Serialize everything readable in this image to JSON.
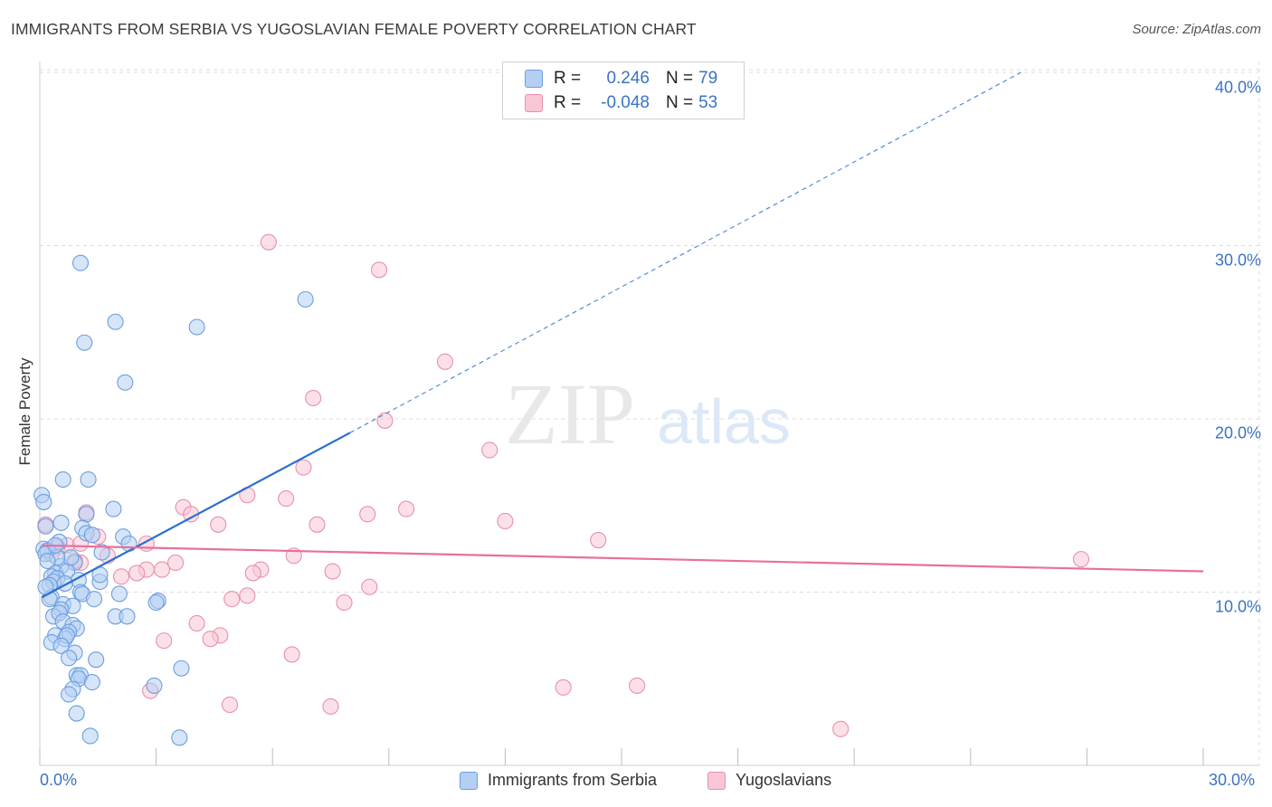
{
  "title": "IMMIGRANTS FROM SERBIA VS YUGOSLAVIAN FEMALE POVERTY CORRELATION CHART",
  "source": "Source: ZipAtlas.com",
  "watermark": {
    "zip": "ZIP",
    "atlas": "atlas"
  },
  "colors": {
    "blue": "#3b73c4",
    "blue_fill": "#b5cff2",
    "blue_stroke": "#6b9ee0",
    "blue_line": "#2c6fd1",
    "pink_fill": "#f9c6d6",
    "pink_stroke": "#e890ab",
    "pink_line": "#e8709a",
    "grid": "#dcdcdc"
  },
  "legend_top": {
    "rows": [
      {
        "r_label": "R =",
        "r_value": "0.246",
        "n_label": "N =",
        "n_value": "79"
      },
      {
        "r_label": "R =",
        "r_value": "-0.048",
        "n_label": "N =",
        "n_value": "53"
      }
    ]
  },
  "legend_bottom": {
    "items": [
      {
        "label": "Immigrants from Serbia"
      },
      {
        "label": "Yugoslavians"
      }
    ]
  },
  "chart_data": {
    "type": "scatter",
    "title": "IMMIGRANTS FROM SERBIA VS YUGOSLAVIAN FEMALE POVERTY CORRELATION CHART",
    "xlabel": "",
    "ylabel": "Female Poverty",
    "xlim": [
      0,
      30
    ],
    "ylim": [
      0,
      42
    ],
    "x_ticks": [
      {
        "value": 0,
        "label": "0.0%"
      },
      {
        "value": 30,
        "label": "30.0%"
      }
    ],
    "y_ticks": [
      {
        "value": 10,
        "label": "10.0%"
      },
      {
        "value": 20,
        "label": "20.0%"
      },
      {
        "value": 30,
        "label": "30.0%"
      },
      {
        "value": 40,
        "label": "40.0%"
      }
    ],
    "grid": true,
    "legend": "bottom-center",
    "series": [
      {
        "name": "Immigrants from Serbia",
        "color": "blue",
        "r": 0.246,
        "n": 79,
        "trend": {
          "x0": 0.05,
          "y0": 9.7,
          "x1": 8.0,
          "y1": 19.2,
          "dash_to_x": 25.3,
          "dash_to_y": 40.0
        },
        "points": [
          [
            1.05,
            29.0
          ],
          [
            1.15,
            24.4
          ],
          [
            1.95,
            25.6
          ],
          [
            4.05,
            25.3
          ],
          [
            6.85,
            26.9
          ],
          [
            2.2,
            22.1
          ],
          [
            0.6,
            16.5
          ],
          [
            1.25,
            16.5
          ],
          [
            0.05,
            15.6
          ],
          [
            0.1,
            15.2
          ],
          [
            1.2,
            14.5
          ],
          [
            1.9,
            14.8
          ],
          [
            0.55,
            14.0
          ],
          [
            0.15,
            13.8
          ],
          [
            1.1,
            13.7
          ],
          [
            1.2,
            13.4
          ],
          [
            1.35,
            13.3
          ],
          [
            2.15,
            13.2
          ],
          [
            0.5,
            12.9
          ],
          [
            0.1,
            12.5
          ],
          [
            0.2,
            12.4
          ],
          [
            0.15,
            12.2
          ],
          [
            0.9,
            11.7
          ],
          [
            0.55,
            11.5
          ],
          [
            2.3,
            12.8
          ],
          [
            0.4,
            11.1
          ],
          [
            0.7,
            11.2
          ],
          [
            0.3,
            10.9
          ],
          [
            0.45,
            10.8
          ],
          [
            0.35,
            10.6
          ],
          [
            1.0,
            10.7
          ],
          [
            0.65,
            10.5
          ],
          [
            0.25,
            10.4
          ],
          [
            1.55,
            10.6
          ],
          [
            1.05,
            10.0
          ],
          [
            1.1,
            9.9
          ],
          [
            2.05,
            9.9
          ],
          [
            0.3,
            9.7
          ],
          [
            0.25,
            9.6
          ],
          [
            0.6,
            9.3
          ],
          [
            0.85,
            9.2
          ],
          [
            0.55,
            9.0
          ],
          [
            3.05,
            9.5
          ],
          [
            3.0,
            9.4
          ],
          [
            0.35,
            8.6
          ],
          [
            0.5,
            8.8
          ],
          [
            1.95,
            8.6
          ],
          [
            2.25,
            8.6
          ],
          [
            0.6,
            8.3
          ],
          [
            0.85,
            8.1
          ],
          [
            0.95,
            7.9
          ],
          [
            0.75,
            7.7
          ],
          [
            0.4,
            7.5
          ],
          [
            0.65,
            7.3
          ],
          [
            0.7,
            7.5
          ],
          [
            0.3,
            7.1
          ],
          [
            0.55,
            6.9
          ],
          [
            0.9,
            6.5
          ],
          [
            0.75,
            6.2
          ],
          [
            1.45,
            6.1
          ],
          [
            3.65,
            5.6
          ],
          [
            0.95,
            5.2
          ],
          [
            1.05,
            5.2
          ],
          [
            1.0,
            5.0
          ],
          [
            1.35,
            4.8
          ],
          [
            2.95,
            4.6
          ],
          [
            0.85,
            4.4
          ],
          [
            0.75,
            4.1
          ],
          [
            0.95,
            3.0
          ],
          [
            1.3,
            1.7
          ],
          [
            3.6,
            1.6
          ],
          [
            1.55,
            11.0
          ],
          [
            0.8,
            12.0
          ],
          [
            0.45,
            12.0
          ],
          [
            0.2,
            11.8
          ],
          [
            1.6,
            12.3
          ],
          [
            0.4,
            12.7
          ],
          [
            0.15,
            10.3
          ],
          [
            1.4,
            9.6
          ]
        ]
      },
      {
        "name": "Yugoslavians",
        "color": "pink",
        "r": -0.048,
        "n": 53,
        "trend": {
          "x0": 0.05,
          "y0": 12.7,
          "x1": 30.0,
          "y1": 11.2
        },
        "points": [
          [
            5.9,
            30.2
          ],
          [
            8.75,
            28.6
          ],
          [
            10.45,
            23.3
          ],
          [
            7.05,
            21.2
          ],
          [
            8.9,
            19.9
          ],
          [
            11.6,
            18.2
          ],
          [
            6.8,
            17.2
          ],
          [
            5.35,
            15.6
          ],
          [
            6.35,
            15.4
          ],
          [
            3.7,
            14.9
          ],
          [
            9.45,
            14.8
          ],
          [
            3.9,
            14.5
          ],
          [
            8.45,
            14.5
          ],
          [
            1.2,
            14.6
          ],
          [
            0.15,
            13.9
          ],
          [
            4.6,
            13.9
          ],
          [
            7.15,
            13.9
          ],
          [
            12.0,
            14.1
          ],
          [
            1.5,
            13.2
          ],
          [
            14.4,
            13.0
          ],
          [
            2.75,
            12.8
          ],
          [
            0.7,
            12.7
          ],
          [
            1.05,
            11.7
          ],
          [
            0.45,
            12.6
          ],
          [
            1.75,
            12.1
          ],
          [
            6.55,
            12.1
          ],
          [
            3.5,
            11.7
          ],
          [
            2.75,
            11.3
          ],
          [
            3.15,
            11.3
          ],
          [
            5.7,
            11.3
          ],
          [
            5.5,
            11.1
          ],
          [
            7.55,
            11.2
          ],
          [
            2.5,
            11.1
          ],
          [
            26.85,
            11.9
          ],
          [
            8.5,
            10.3
          ],
          [
            4.95,
            9.6
          ],
          [
            5.35,
            9.8
          ],
          [
            7.85,
            9.4
          ],
          [
            4.05,
            8.2
          ],
          [
            4.65,
            7.5
          ],
          [
            4.4,
            7.3
          ],
          [
            3.2,
            7.2
          ],
          [
            6.5,
            6.4
          ],
          [
            15.4,
            4.6
          ],
          [
            13.5,
            4.5
          ],
          [
            2.85,
            4.3
          ],
          [
            4.9,
            3.5
          ],
          [
            7.5,
            3.4
          ],
          [
            20.65,
            2.1
          ],
          [
            0.9,
            11.8
          ],
          [
            0.3,
            12.2
          ],
          [
            2.1,
            10.9
          ],
          [
            1.05,
            12.8
          ]
        ]
      }
    ]
  }
}
